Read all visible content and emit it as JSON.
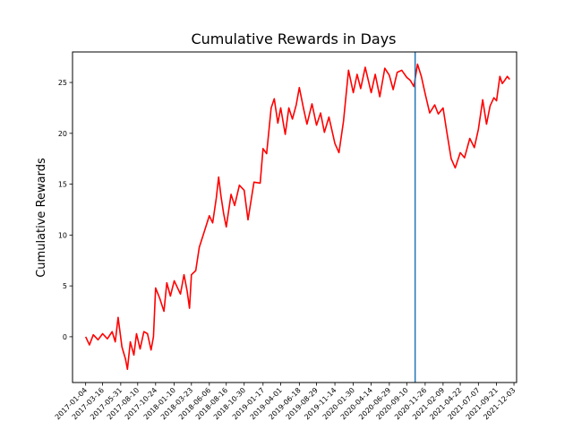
{
  "chart_data": {
    "type": "line",
    "title": "Cumulative Rewards in Days",
    "xlabel": "",
    "ylabel": "Cumulative Rewards",
    "ylim": [
      -4.5,
      28
    ],
    "xlim": [
      "2016-11-10",
      "2021-12-14"
    ],
    "x_ticks": [
      "2017-01-04",
      "2017-03-16",
      "2017-05-31",
      "2017-08-10",
      "2017-10-24",
      "2018-01-10",
      "2018-03-23",
      "2018-06-06",
      "2018-08-16",
      "2018-10-30",
      "2019-01-17",
      "2019-04-01",
      "2019-06-18",
      "2019-08-29",
      "2019-11-14",
      "2020-01-30",
      "2020-04-14",
      "2020-06-29",
      "2020-09-10",
      "2020-11-26",
      "2021-02-09",
      "2021-04-22",
      "2021-07-07",
      "2021-09-21",
      "2021-12-03"
    ],
    "y_ticks": [
      0,
      5,
      10,
      15,
      20,
      25
    ],
    "grid": false,
    "series": [
      {
        "color": "#ff0000",
        "x": [
          "2017-01-04",
          "2017-01-20",
          "2017-02-05",
          "2017-02-25",
          "2017-03-16",
          "2017-04-05",
          "2017-04-25",
          "2017-05-08",
          "2017-05-20",
          "2017-06-05",
          "2017-06-20",
          "2017-06-28",
          "2017-07-10",
          "2017-07-25",
          "2017-08-05",
          "2017-08-20",
          "2017-09-05",
          "2017-09-20",
          "2017-10-05",
          "2017-10-15",
          "2017-10-24",
          "2017-11-10",
          "2017-11-28",
          "2017-12-10",
          "2017-12-25",
          "2018-01-10",
          "2018-02-05",
          "2018-02-20",
          "2018-03-05",
          "2018-03-15",
          "2018-03-23",
          "2018-04-10",
          "2018-04-25",
          "2018-05-10",
          "2018-06-06",
          "2018-06-20",
          "2018-07-05",
          "2018-07-15",
          "2018-07-25",
          "2018-08-05",
          "2018-08-16",
          "2018-09-05",
          "2018-09-20",
          "2018-10-10",
          "2018-10-30",
          "2018-11-15",
          "2018-12-10",
          "2019-01-05",
          "2019-01-17",
          "2019-02-01",
          "2019-02-20",
          "2019-03-05",
          "2019-03-20",
          "2019-04-01",
          "2019-04-20",
          "2019-05-05",
          "2019-05-20",
          "2019-06-05",
          "2019-06-18",
          "2019-07-05",
          "2019-07-20",
          "2019-08-10",
          "2019-08-29",
          "2019-09-15",
          "2019-10-01",
          "2019-10-20",
          "2019-11-14",
          "2019-12-01",
          "2019-12-20",
          "2020-01-10",
          "2020-01-30",
          "2020-02-15",
          "2020-03-01",
          "2020-03-20",
          "2020-04-14",
          "2020-05-01",
          "2020-05-20",
          "2020-06-10",
          "2020-06-29",
          "2020-07-15",
          "2020-08-01",
          "2020-08-20",
          "2020-09-10",
          "2020-09-25",
          "2020-10-10",
          "2020-10-25",
          "2020-11-10",
          "2020-11-26",
          "2020-12-15",
          "2021-01-05",
          "2021-01-20",
          "2021-02-09",
          "2021-02-25",
          "2021-03-15",
          "2021-04-01",
          "2021-04-22",
          "2021-05-10",
          "2021-06-01",
          "2021-06-20",
          "2021-07-07",
          "2021-07-25",
          "2021-08-10",
          "2021-08-25",
          "2021-09-10",
          "2021-09-21",
          "2021-10-05",
          "2021-10-15",
          "2021-10-25",
          "2021-11-05",
          "2021-11-15"
        ],
        "y": [
          0,
          -0.8,
          0.2,
          -0.3,
          0.3,
          -0.2,
          0.5,
          -0.5,
          1.9,
          -1.0,
          -2.2,
          -3.2,
          -0.5,
          -1.8,
          0.3,
          -1.2,
          0.5,
          0.3,
          -1.3,
          0.0,
          4.8,
          3.8,
          2.5,
          5.3,
          4.0,
          5.5,
          4.2,
          6.1,
          4.5,
          2.8,
          6.1,
          6.5,
          8.8,
          9.9,
          11.9,
          11.2,
          13.6,
          15.7,
          13.8,
          12.1,
          10.8,
          14.0,
          12.9,
          14.9,
          14.4,
          11.5,
          15.2,
          15.1,
          18.5,
          18.0,
          22.5,
          23.4,
          21.0,
          22.5,
          19.9,
          22.5,
          21.4,
          22.8,
          24.5,
          22.5,
          20.9,
          22.9,
          20.8,
          22.0,
          20.1,
          21.6,
          19.0,
          18.1,
          21.2,
          26.2,
          24.0,
          25.8,
          24.4,
          26.5,
          24.0,
          25.8,
          23.6,
          26.4,
          25.7,
          24.3,
          26.0,
          26.2,
          25.5,
          25.2,
          24.6,
          26.8,
          25.6,
          23.9,
          22.0,
          22.8,
          21.9,
          22.5,
          20.1,
          17.5,
          16.6,
          18.1,
          17.6,
          19.5,
          18.6,
          20.4,
          23.3,
          20.9,
          22.7,
          23.5,
          23.2,
          25.6,
          24.9,
          25.2,
          25.6,
          25.3
        ]
      }
    ],
    "annotations": [
      {
        "type": "vline",
        "x": "2020-10-15",
        "color": "#1f77b4"
      }
    ]
  }
}
